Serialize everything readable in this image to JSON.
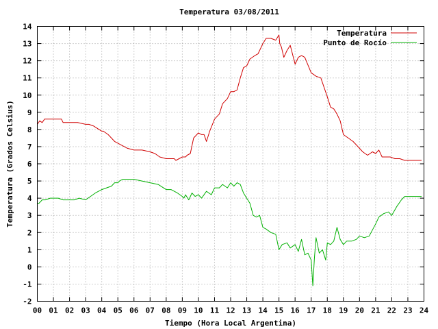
{
  "chart_data": {
    "type": "line",
    "title": "Temperatura 03/08/2011",
    "xlabel": "Tiempo (Hora Local Argentina)",
    "ylabel": "Temperatura (Grados Celsius)",
    "xlim": [
      0,
      24
    ],
    "ylim": [
      -2,
      14
    ],
    "x_ticks": [
      "00",
      "01",
      "02",
      "03",
      "04",
      "05",
      "06",
      "07",
      "08",
      "09",
      "10",
      "11",
      "12",
      "13",
      "14",
      "15",
      "16",
      "17",
      "18",
      "19",
      "20",
      "21",
      "22",
      "23",
      "24"
    ],
    "y_ticks": [
      "-2",
      "-1",
      "0",
      "1",
      "2",
      "3",
      "4",
      "5",
      "6",
      "7",
      "8",
      "9",
      "10",
      "11",
      "12",
      "13",
      "14"
    ],
    "grid": true,
    "legend_position": "top-right",
    "series": [
      {
        "name": "Temperatura",
        "color": "#d00000",
        "x": [
          0,
          0.15,
          0.3,
          0.45,
          0.6,
          1,
          1.5,
          1.6,
          2,
          2.5,
          3,
          3.2,
          3.5,
          4,
          4.1,
          4.4,
          4.6,
          4.8,
          5,
          5.2,
          5.6,
          6,
          6.5,
          7,
          7.3,
          7.6,
          8,
          8.3,
          8.5,
          8.6,
          8.8,
          9,
          9.2,
          9.3,
          9.5,
          9.7,
          10,
          10.2,
          10.35,
          10.5,
          10.7,
          11,
          11.1,
          11.3,
          11.5,
          11.8,
          12,
          12.2,
          12.4,
          12.6,
          12.8,
          13,
          13.2,
          13.5,
          13.7,
          14,
          14.2,
          14.5,
          14.8,
          15,
          15.05,
          15.15,
          15.3,
          15.5,
          15.7,
          16,
          16.2,
          16.4,
          16.6,
          17,
          17.3,
          17.6,
          18,
          18.2,
          18.4,
          18.6,
          18.8,
          19,
          19.3,
          19.6,
          19.9,
          20.2,
          20.5,
          20.8,
          21,
          21.2,
          21.4,
          21.6,
          21.9,
          22.2,
          22.5,
          22.8,
          23,
          23.1,
          23.3,
          23.5,
          23.7,
          23.85
        ],
        "values": [
          8.3,
          8.5,
          8.4,
          8.6,
          8.6,
          8.6,
          8.6,
          8.4,
          8.4,
          8.4,
          8.3,
          8.3,
          8.2,
          7.9,
          7.9,
          7.7,
          7.5,
          7.3,
          7.2,
          7.1,
          6.9,
          6.8,
          6.8,
          6.7,
          6.6,
          6.4,
          6.3,
          6.3,
          6.3,
          6.2,
          6.3,
          6.4,
          6.4,
          6.5,
          6.6,
          7.5,
          7.8,
          7.7,
          7.7,
          7.3,
          7.9,
          8.6,
          8.7,
          8.9,
          9.5,
          9.8,
          10.2,
          10.2,
          10.3,
          11.0,
          11.6,
          11.7,
          12.1,
          12.3,
          12.4,
          13.0,
          13.3,
          13.3,
          13.2,
          13.5,
          13.0,
          12.8,
          12.2,
          12.6,
          12.9,
          11.8,
          12.2,
          12.3,
          12.2,
          11.3,
          11.1,
          11.0,
          9.9,
          9.3,
          9.2,
          8.9,
          8.5,
          7.7,
          7.5,
          7.3,
          7.0,
          6.7,
          6.5,
          6.7,
          6.6,
          6.8,
          6.4,
          6.4,
          6.4,
          6.3,
          6.3,
          6.2,
          6.2,
          6.2,
          6.2,
          6.2,
          6.2,
          6.2
        ]
      },
      {
        "name": "Punto de Rocío",
        "color": "#00b000",
        "x": [
          0,
          0.1,
          0.3,
          0.5,
          0.8,
          1,
          1.3,
          1.6,
          2,
          2.3,
          2.6,
          3,
          3.3,
          3.6,
          4,
          4.3,
          4.6,
          4.8,
          5,
          5.1,
          5.3,
          5.5,
          6,
          6.5,
          7,
          7.5,
          8,
          8.3,
          8.5,
          8.7,
          9,
          9.1,
          9.2,
          9.4,
          9.6,
          9.8,
          10,
          10.2,
          10.5,
          10.8,
          11,
          11.3,
          11.5,
          11.8,
          12,
          12.2,
          12.4,
          12.6,
          12.8,
          13,
          13.2,
          13.4,
          13.6,
          13.8,
          14,
          14.2,
          14.5,
          14.8,
          15,
          15.2,
          15.5,
          15.7,
          16,
          16.2,
          16.4,
          16.6,
          16.8,
          17,
          17.1,
          17.2,
          17.3,
          17.5,
          17.7,
          17.9,
          18,
          18.2,
          18.4,
          18.6,
          18.8,
          19,
          19.2,
          19.5,
          19.8,
          20,
          20.3,
          20.6,
          21,
          21.2,
          21.5,
          21.8,
          22,
          22.3,
          22.6,
          22.8,
          23,
          23.3,
          23.6,
          23.85
        ],
        "values": [
          3.7,
          3.7,
          3.9,
          3.9,
          4.0,
          4.0,
          4.0,
          3.9,
          3.9,
          3.9,
          4.0,
          3.9,
          4.1,
          4.3,
          4.5,
          4.6,
          4.7,
          4.9,
          4.9,
          5.0,
          5.1,
          5.1,
          5.1,
          5.0,
          4.9,
          4.8,
          4.5,
          4.5,
          4.4,
          4.3,
          4.1,
          4.0,
          4.2,
          3.9,
          4.3,
          4.1,
          4.2,
          4.0,
          4.4,
          4.2,
          4.6,
          4.6,
          4.8,
          4.6,
          4.9,
          4.7,
          4.9,
          4.8,
          4.3,
          4.0,
          3.7,
          3.0,
          2.9,
          3.0,
          2.3,
          2.2,
          2.0,
          1.9,
          1.0,
          1.3,
          1.4,
          1.1,
          1.3,
          0.9,
          1.6,
          0.7,
          0.8,
          0.4,
          -1.1,
          0.5,
          1.7,
          0.8,
          1.0,
          0.4,
          1.4,
          1.3,
          1.5,
          2.3,
          1.6,
          1.3,
          1.5,
          1.5,
          1.6,
          1.8,
          1.7,
          1.8,
          2.5,
          2.9,
          3.1,
          3.2,
          3.0,
          3.5,
          3.9,
          4.1,
          4.1,
          4.1,
          4.1,
          4.1
        ]
      }
    ]
  }
}
